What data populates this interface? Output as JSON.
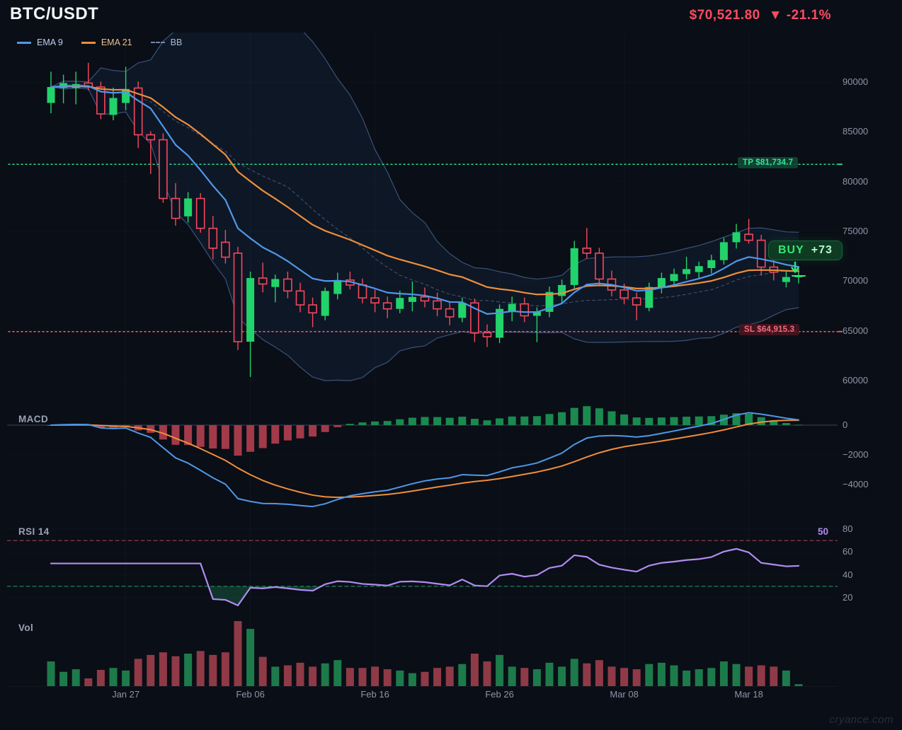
{
  "header": {
    "symbol": "BTC/USDT",
    "price": "$70,521.80",
    "direction_icon": "▼",
    "change": "-21.1%"
  },
  "legend": [
    {
      "label": "EMA 9",
      "swatch": "line",
      "color": "#4f97e8",
      "text_color": "#bdd0ef"
    },
    {
      "label": "EMA 21",
      "swatch": "line",
      "color": "#ee8e3c",
      "text_color": "#eec08f"
    },
    {
      "label": "BB",
      "swatch": "dashed",
      "color": "#6f87ad",
      "text_color": "#a8b9d6"
    }
  ],
  "signals": {
    "tp_label": "TP $81,734.7",
    "sl_label": "SL $64,915.3",
    "buy_label": "BUY",
    "buy_score": "+73",
    "arrow_icon": "down-arrow"
  },
  "panels": {
    "macd": {
      "title": "MACD",
      "ticks": [
        "0",
        "−2000",
        "−4000"
      ],
      "tick_values": [
        0,
        -2000,
        -4000
      ]
    },
    "rsi": {
      "title": "RSI 14",
      "ticks": [
        "80",
        "60",
        "40",
        "20"
      ],
      "tick_values": [
        80,
        60,
        40,
        20
      ],
      "current": "50"
    },
    "vol": {
      "title": "Vol"
    }
  },
  "axes": {
    "price_ticks": [
      "90000",
      "85000",
      "80000",
      "75000",
      "70000",
      "65000",
      "60000"
    ],
    "price_tick_values": [
      90000,
      85000,
      80000,
      75000,
      70000,
      65000,
      60000
    ],
    "x_labels": [
      {
        "label": "Jan 27",
        "index": 6
      },
      {
        "label": "Feb 06",
        "index": 16
      },
      {
        "label": "Feb 16",
        "index": 26
      },
      {
        "label": "Feb 26",
        "index": 36
      },
      {
        "label": "Mar 08",
        "index": 46
      },
      {
        "label": "Mar 18",
        "index": 56
      }
    ]
  },
  "watermark": "cryance.com",
  "colors": {
    "background": "#0a0e16",
    "price_down": "#fb4b63",
    "candle_up": "#22d36b",
    "candle_down": "#f5485d",
    "ema9": "#4f97e8",
    "ema21": "#ee8e3c",
    "bb_line": "#47628f",
    "bb_fill": "rgba(59,105,176,0.10)",
    "tp_line": "#2bd889",
    "sl_line": "#ef5368",
    "macd_hist_up": "#1a8a50",
    "macd_hist_down": "#a23a4a",
    "rsi_line": "#b18cf0",
    "rsi_overbought": "#c25062",
    "rsi_oversold": "#2a9d6f",
    "vol_up": "#1d7a4a",
    "vol_down": "#8f3a46",
    "axis_text": "#8d95a8",
    "buy_green": "#35e673"
  },
  "chart_data": {
    "type": "candlestick",
    "symbol": "BTC/USDT",
    "x_unit": "day",
    "title": "BTC/USDT with EMA 9, EMA 21, Bollinger Bands, MACD, RSI 14 and Volume",
    "last_price": 70521.8,
    "change_pct": -21.1,
    "levels": {
      "take_profit": 81734.7,
      "stop_loss": 64915.3
    },
    "signal": {
      "type": "BUY",
      "score": 73,
      "index": 60
    },
    "price_axis_ticks": [
      90000,
      85000,
      80000,
      75000,
      70000,
      65000,
      60000
    ],
    "x_axis_tick_labels": [
      "Jan 27",
      "Feb 06",
      "Feb 16",
      "Feb 26",
      "Mar 08",
      "Mar 18"
    ],
    "x_axis_tick_indices": [
      6,
      16,
      26,
      36,
      46,
      56
    ],
    "overlays": [
      {
        "name": "EMA 9",
        "period": 9
      },
      {
        "name": "EMA 21",
        "period": 21
      },
      {
        "name": "Bollinger Bands",
        "period": 20,
        "stddev": 2
      }
    ],
    "oscillators": [
      {
        "name": "MACD",
        "fast": 12,
        "slow": 26,
        "signal": 9,
        "axis_ticks": [
          0,
          -2000,
          -4000
        ]
      },
      {
        "name": "RSI",
        "period": 14,
        "overbought": 70,
        "oversold": 30,
        "current": 50,
        "axis_ticks": [
          80,
          60,
          40,
          20
        ]
      },
      {
        "name": "Volume"
      }
    ],
    "dates": [
      "Jan 21",
      "Jan 22",
      "Jan 23",
      "Jan 24",
      "Jan 25",
      "Jan 26",
      "Jan 27",
      "Jan 28",
      "Jan 29",
      "Jan 30",
      "Jan 31",
      "Feb 01",
      "Feb 02",
      "Feb 03",
      "Feb 04",
      "Feb 05",
      "Feb 06",
      "Feb 07",
      "Feb 08",
      "Feb 09",
      "Feb 10",
      "Feb 11",
      "Feb 12",
      "Feb 13",
      "Feb 14",
      "Feb 15",
      "Feb 16",
      "Feb 17",
      "Feb 18",
      "Feb 19",
      "Feb 20",
      "Feb 21",
      "Feb 22",
      "Feb 23",
      "Feb 24",
      "Feb 25",
      "Feb 26",
      "Feb 27",
      "Feb 28",
      "Mar 01",
      "Mar 02",
      "Mar 03",
      "Mar 04",
      "Mar 05",
      "Mar 06",
      "Mar 07",
      "Mar 08",
      "Mar 09",
      "Mar 10",
      "Mar 11",
      "Mar 12",
      "Mar 13",
      "Mar 14",
      "Mar 15",
      "Mar 16",
      "Mar 17",
      "Mar 18",
      "Mar 19",
      "Mar 20",
      "Mar 21",
      "Mar 22"
    ],
    "ohlc": [
      [
        87900,
        91000,
        86900,
        89500
      ],
      [
        89400,
        90700,
        87900,
        89900
      ],
      [
        89400,
        91000,
        87800,
        89800
      ],
      [
        89900,
        91900,
        89200,
        89500
      ],
      [
        89500,
        90000,
        86300,
        86800
      ],
      [
        86700,
        89400,
        86200,
        88400
      ],
      [
        87900,
        91500,
        87200,
        89300
      ],
      [
        89400,
        90000,
        83400,
        84700
      ],
      [
        84700,
        85000,
        80800,
        84200
      ],
      [
        84200,
        84800,
        77900,
        78300
      ],
      [
        78300,
        79800,
        75600,
        76300
      ],
      [
        76500,
        78900,
        75900,
        78300
      ],
      [
        78300,
        78800,
        74900,
        75300
      ],
      [
        75300,
        76500,
        72200,
        73300
      ],
      [
        73900,
        75100,
        71800,
        72400
      ],
      [
        72800,
        73400,
        63100,
        63900
      ],
      [
        63900,
        70900,
        60400,
        70300
      ],
      [
        70300,
        71800,
        68900,
        69700
      ],
      [
        69400,
        70600,
        67900,
        70200
      ],
      [
        70200,
        70900,
        68300,
        69000
      ],
      [
        69000,
        69800,
        66900,
        67600
      ],
      [
        67600,
        68300,
        65400,
        66800
      ],
      [
        66500,
        69300,
        66100,
        69000
      ],
      [
        68700,
        70800,
        68200,
        70100
      ],
      [
        70100,
        70900,
        69200,
        69600
      ],
      [
        69600,
        70200,
        67800,
        68300
      ],
      [
        68300,
        69100,
        66900,
        67800
      ],
      [
        67800,
        68400,
        66300,
        67200
      ],
      [
        67200,
        69000,
        66800,
        68300
      ],
      [
        67900,
        69900,
        67000,
        68400
      ],
      [
        68400,
        69300,
        67400,
        68000
      ],
      [
        68000,
        68800,
        66500,
        67200
      ],
      [
        67200,
        67900,
        65600,
        66400
      ],
      [
        66300,
        68300,
        65900,
        67800
      ],
      [
        67800,
        68200,
        63900,
        64800
      ],
      [
        64800,
        65600,
        63400,
        64400
      ],
      [
        64300,
        67600,
        63800,
        67200
      ],
      [
        66900,
        68400,
        66000,
        67700
      ],
      [
        67700,
        68300,
        65900,
        66500
      ],
      [
        66500,
        67300,
        63900,
        66900
      ],
      [
        66900,
        69400,
        66400,
        68900
      ],
      [
        68500,
        70100,
        67800,
        69600
      ],
      [
        69600,
        74000,
        69300,
        73300
      ],
      [
        73300,
        75300,
        72300,
        72800
      ],
      [
        72800,
        73300,
        69600,
        70200
      ],
      [
        70200,
        71000,
        68500,
        69100
      ],
      [
        69100,
        69700,
        67700,
        68300
      ],
      [
        68300,
        68800,
        66100,
        67600
      ],
      [
        67300,
        69800,
        67000,
        69400
      ],
      [
        69300,
        70800,
        68800,
        70300
      ],
      [
        70000,
        71200,
        69600,
        70700
      ],
      [
        70700,
        72400,
        70200,
        71200
      ],
      [
        70900,
        71900,
        70300,
        71500
      ],
      [
        71300,
        72600,
        70800,
        72100
      ],
      [
        72100,
        74300,
        71700,
        73900
      ],
      [
        73900,
        75700,
        73300,
        74900
      ],
      [
        74700,
        76200,
        73800,
        74100
      ],
      [
        74100,
        74600,
        70600,
        71400
      ],
      [
        71400,
        72300,
        70100,
        70900
      ],
      [
        69900,
        70900,
        69400,
        70400
      ],
      [
        70400,
        71200,
        69800,
        70521.8
      ]
    ],
    "volumes": [
      38,
      22,
      26,
      12,
      25,
      28,
      24,
      42,
      48,
      52,
      46,
      50,
      54,
      48,
      52,
      100,
      88,
      45,
      30,
      32,
      36,
      30,
      35,
      40,
      28,
      28,
      30,
      26,
      24,
      20,
      22,
      28,
      30,
      34,
      50,
      38,
      48,
      30,
      28,
      26,
      36,
      30,
      42,
      35,
      40,
      30,
      28,
      26,
      34,
      36,
      32,
      24,
      26,
      28,
      38,
      34,
      30,
      32,
      30,
      24,
      3
    ]
  }
}
